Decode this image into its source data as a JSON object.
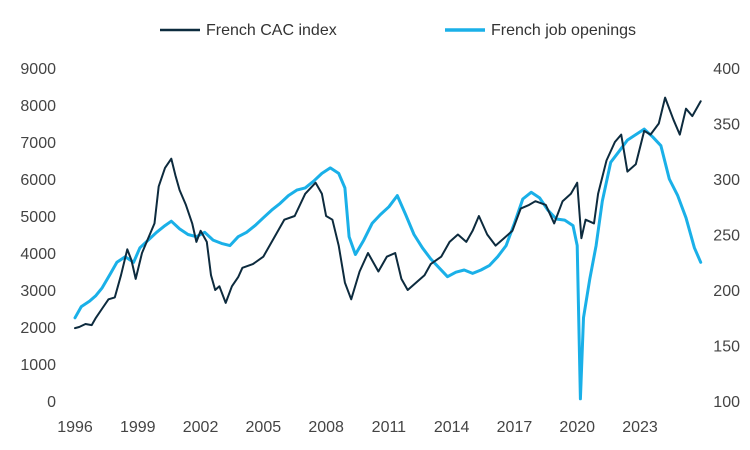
{
  "chart_data": {
    "type": "line",
    "legend": {
      "placement": "top-center",
      "entries": [
        "French CAC index",
        "French job openings"
      ]
    },
    "x_ticks": [
      "1996",
      "1999",
      "2002",
      "2005",
      "2008",
      "2011",
      "2014",
      "2017",
      "2020",
      "2023"
    ],
    "x_range": [
      1996,
      2025.9
    ],
    "y_left": {
      "range": [
        0,
        9000
      ],
      "ticks": [
        0,
        1000,
        2000,
        3000,
        4000,
        5000,
        6000,
        7000,
        8000,
        9000
      ]
    },
    "y_right": {
      "range": [
        100,
        400
      ],
      "ticks": [
        100,
        150,
        200,
        250,
        300,
        350,
        400
      ]
    },
    "grid": false,
    "series": [
      {
        "name": "French CAC index",
        "axis": "left",
        "color": "#0d2b3e",
        "points": [
          [
            1996.0,
            1970
          ],
          [
            1996.2,
            2000
          ],
          [
            1996.5,
            2080
          ],
          [
            1996.8,
            2050
          ],
          [
            1997.0,
            2250
          ],
          [
            1997.3,
            2500
          ],
          [
            1997.6,
            2750
          ],
          [
            1997.9,
            2800
          ],
          [
            1998.2,
            3400
          ],
          [
            1998.5,
            4100
          ],
          [
            1998.7,
            3800
          ],
          [
            1998.9,
            3300
          ],
          [
            1999.2,
            4000
          ],
          [
            1999.5,
            4400
          ],
          [
            1999.8,
            4800
          ],
          [
            2000.0,
            5800
          ],
          [
            2000.3,
            6300
          ],
          [
            2000.6,
            6550
          ],
          [
            2000.8,
            6100
          ],
          [
            2001.0,
            5700
          ],
          [
            2001.3,
            5300
          ],
          [
            2001.6,
            4800
          ],
          [
            2001.8,
            4300
          ],
          [
            2002.0,
            4600
          ],
          [
            2002.3,
            4300
          ],
          [
            2002.5,
            3400
          ],
          [
            2002.7,
            3000
          ],
          [
            2002.9,
            3100
          ],
          [
            2003.2,
            2650
          ],
          [
            2003.5,
            3100
          ],
          [
            2003.8,
            3350
          ],
          [
            2004.0,
            3600
          ],
          [
            2004.5,
            3700
          ],
          [
            2005.0,
            3900
          ],
          [
            2005.5,
            4400
          ],
          [
            2006.0,
            4900
          ],
          [
            2006.5,
            5000
          ],
          [
            2007.0,
            5600
          ],
          [
            2007.5,
            5900
          ],
          [
            2007.8,
            5600
          ],
          [
            2008.0,
            5000
          ],
          [
            2008.3,
            4900
          ],
          [
            2008.6,
            4200
          ],
          [
            2008.9,
            3200
          ],
          [
            2009.2,
            2750
          ],
          [
            2009.6,
            3500
          ],
          [
            2010.0,
            4000
          ],
          [
            2010.5,
            3500
          ],
          [
            2010.9,
            3900
          ],
          [
            2011.3,
            4000
          ],
          [
            2011.6,
            3300
          ],
          [
            2011.9,
            3000
          ],
          [
            2012.3,
            3200
          ],
          [
            2012.7,
            3400
          ],
          [
            2013.0,
            3700
          ],
          [
            2013.5,
            3900
          ],
          [
            2013.9,
            4300
          ],
          [
            2014.3,
            4500
          ],
          [
            2014.7,
            4300
          ],
          [
            2015.0,
            4600
          ],
          [
            2015.3,
            5000
          ],
          [
            2015.7,
            4500
          ],
          [
            2016.1,
            4200
          ],
          [
            2016.5,
            4400
          ],
          [
            2016.9,
            4600
          ],
          [
            2017.3,
            5200
          ],
          [
            2017.7,
            5300
          ],
          [
            2018.0,
            5400
          ],
          [
            2018.5,
            5300
          ],
          [
            2018.9,
            4800
          ],
          [
            2019.3,
            5400
          ],
          [
            2019.7,
            5600
          ],
          [
            2020.0,
            5900
          ],
          [
            2020.2,
            4400
          ],
          [
            2020.4,
            4900
          ],
          [
            2020.8,
            4800
          ],
          [
            2021.0,
            5600
          ],
          [
            2021.4,
            6500
          ],
          [
            2021.8,
            7000
          ],
          [
            2022.1,
            7200
          ],
          [
            2022.4,
            6200
          ],
          [
            2022.8,
            6400
          ],
          [
            2023.2,
            7300
          ],
          [
            2023.5,
            7200
          ],
          [
            2023.9,
            7500
          ],
          [
            2024.2,
            8200
          ],
          [
            2024.6,
            7600
          ],
          [
            2024.9,
            7200
          ],
          [
            2025.2,
            7900
          ],
          [
            2025.5,
            7700
          ],
          [
            2025.9,
            8100
          ]
        ]
      },
      {
        "name": "French job openings",
        "axis": "right",
        "color": "#1ab0e8",
        "points": [
          [
            1996.0,
            175
          ],
          [
            1996.3,
            185
          ],
          [
            1996.7,
            190
          ],
          [
            1997.0,
            195
          ],
          [
            1997.3,
            202
          ],
          [
            1997.7,
            215
          ],
          [
            1998.0,
            225
          ],
          [
            1998.4,
            230
          ],
          [
            1998.8,
            225
          ],
          [
            1999.1,
            238
          ],
          [
            1999.5,
            245
          ],
          [
            1999.9,
            252
          ],
          [
            2000.3,
            258
          ],
          [
            2000.6,
            262
          ],
          [
            2001.0,
            255
          ],
          [
            2001.4,
            250
          ],
          [
            2001.8,
            248
          ],
          [
            2002.2,
            252
          ],
          [
            2002.6,
            245
          ],
          [
            2003.0,
            242
          ],
          [
            2003.4,
            240
          ],
          [
            2003.8,
            248
          ],
          [
            2004.2,
            252
          ],
          [
            2004.6,
            258
          ],
          [
            2005.0,
            265
          ],
          [
            2005.4,
            272
          ],
          [
            2005.8,
            278
          ],
          [
            2006.2,
            285
          ],
          [
            2006.6,
            290
          ],
          [
            2007.0,
            292
          ],
          [
            2007.4,
            298
          ],
          [
            2007.8,
            305
          ],
          [
            2008.2,
            310
          ],
          [
            2008.6,
            305
          ],
          [
            2008.9,
            292
          ],
          [
            2009.1,
            248
          ],
          [
            2009.4,
            232
          ],
          [
            2009.8,
            245
          ],
          [
            2010.2,
            260
          ],
          [
            2010.6,
            268
          ],
          [
            2011.0,
            275
          ],
          [
            2011.4,
            285
          ],
          [
            2011.8,
            268
          ],
          [
            2012.2,
            250
          ],
          [
            2012.6,
            238
          ],
          [
            2013.0,
            228
          ],
          [
            2013.4,
            220
          ],
          [
            2013.8,
            212
          ],
          [
            2014.2,
            216
          ],
          [
            2014.6,
            218
          ],
          [
            2015.0,
            215
          ],
          [
            2015.4,
            218
          ],
          [
            2015.8,
            222
          ],
          [
            2016.2,
            230
          ],
          [
            2016.6,
            240
          ],
          [
            2017.0,
            260
          ],
          [
            2017.4,
            282
          ],
          [
            2017.8,
            288
          ],
          [
            2018.2,
            283
          ],
          [
            2018.6,
            272
          ],
          [
            2019.0,
            264
          ],
          [
            2019.4,
            263
          ],
          [
            2019.8,
            258
          ],
          [
            2020.0,
            240
          ],
          [
            2020.15,
            102
          ],
          [
            2020.3,
            175
          ],
          [
            2020.6,
            210
          ],
          [
            2020.9,
            240
          ],
          [
            2021.2,
            280
          ],
          [
            2021.6,
            315
          ],
          [
            2022.0,
            325
          ],
          [
            2022.4,
            335
          ],
          [
            2022.8,
            340
          ],
          [
            2023.2,
            345
          ],
          [
            2023.6,
            338
          ],
          [
            2024.0,
            330
          ],
          [
            2024.4,
            300
          ],
          [
            2024.8,
            285
          ],
          [
            2025.2,
            265
          ],
          [
            2025.6,
            238
          ],
          [
            2025.9,
            225
          ]
        ]
      }
    ]
  }
}
